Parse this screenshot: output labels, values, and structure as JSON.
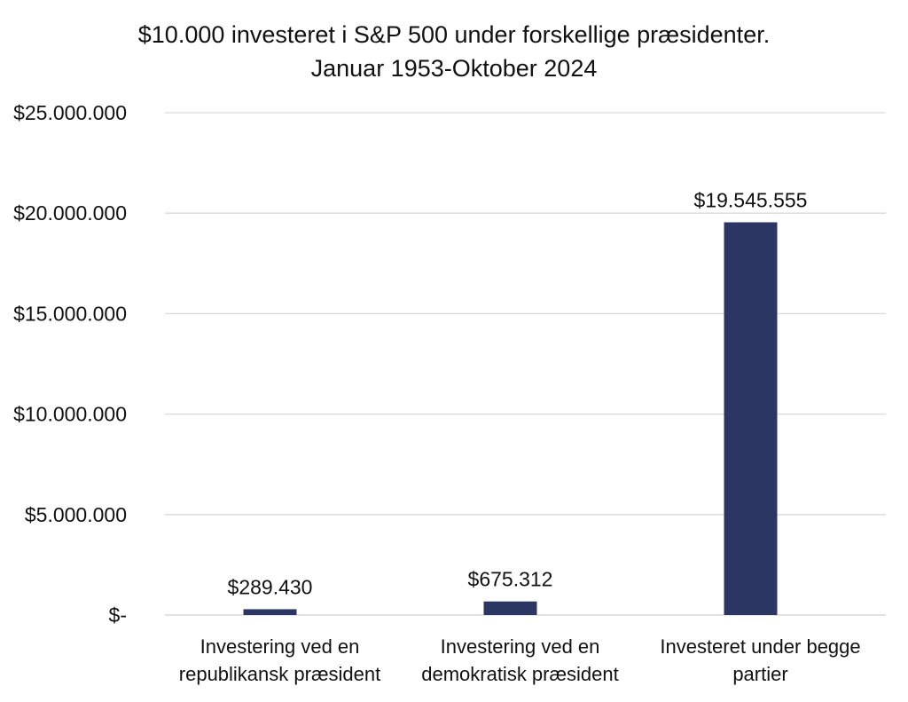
{
  "chart_data": {
    "type": "bar",
    "title_lines": [
      "$10.000 investeret i S&P 500 under forskellige præsidenter.",
      "Januar 1953-Oktober 2024"
    ],
    "categories": [
      [
        "Investering ved en",
        "republikansk præsident"
      ],
      [
        "Investering ved en",
        "demokratisk præsident"
      ],
      [
        "Investeret under begge",
        "partier"
      ]
    ],
    "values": [
      289430,
      675312,
      19545555
    ],
    "data_labels": [
      "$289.430",
      "$675.312",
      "$19.545.555"
    ],
    "y_ticks": [
      0,
      5000000,
      10000000,
      15000000,
      20000000,
      25000000
    ],
    "y_tick_labels": [
      "$-",
      "$5.000.000",
      "$10.000.000",
      "$15.000.000",
      "$20.000.000",
      "$25.000.000"
    ],
    "ylim": [
      0,
      25000000
    ],
    "bar_color": "#2b3663",
    "grid": true,
    "legend": "none"
  }
}
